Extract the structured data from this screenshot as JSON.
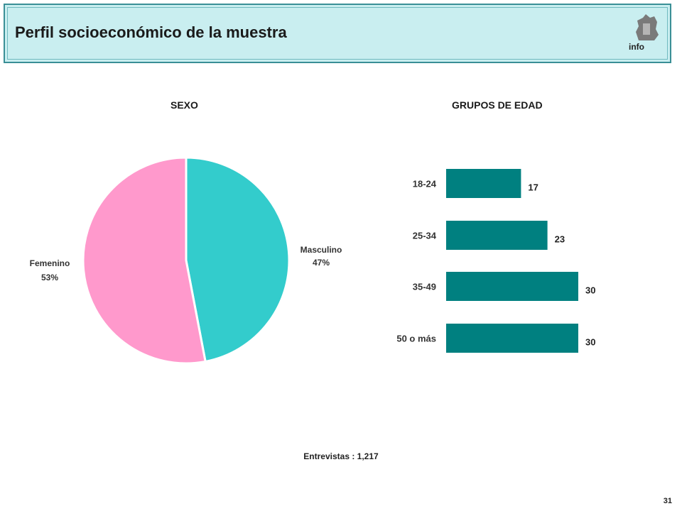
{
  "header": {
    "title": "Perfil socioeconómico de la muestra",
    "logo_text": "info"
  },
  "chart_data": [
    {
      "type": "pie",
      "title": "SEXO",
      "slices": [
        {
          "label": "Masculino",
          "value": 47,
          "value_label": "47%",
          "color": "#33cccc"
        },
        {
          "label": "Femenino",
          "value": 53,
          "value_label": "53%",
          "color": "#ff99cc"
        }
      ]
    },
    {
      "type": "bar",
      "orientation": "horizontal",
      "title": "GRUPOS DE EDAD",
      "categories": [
        "18-24",
        "25-34",
        "35-49",
        "50 o más"
      ],
      "values": [
        17,
        23,
        30,
        30
      ],
      "color": "#008080",
      "xlim": [
        0,
        30
      ]
    }
  ],
  "footer": {
    "note": "Entrevistas : 1,217",
    "page_number": "31"
  }
}
